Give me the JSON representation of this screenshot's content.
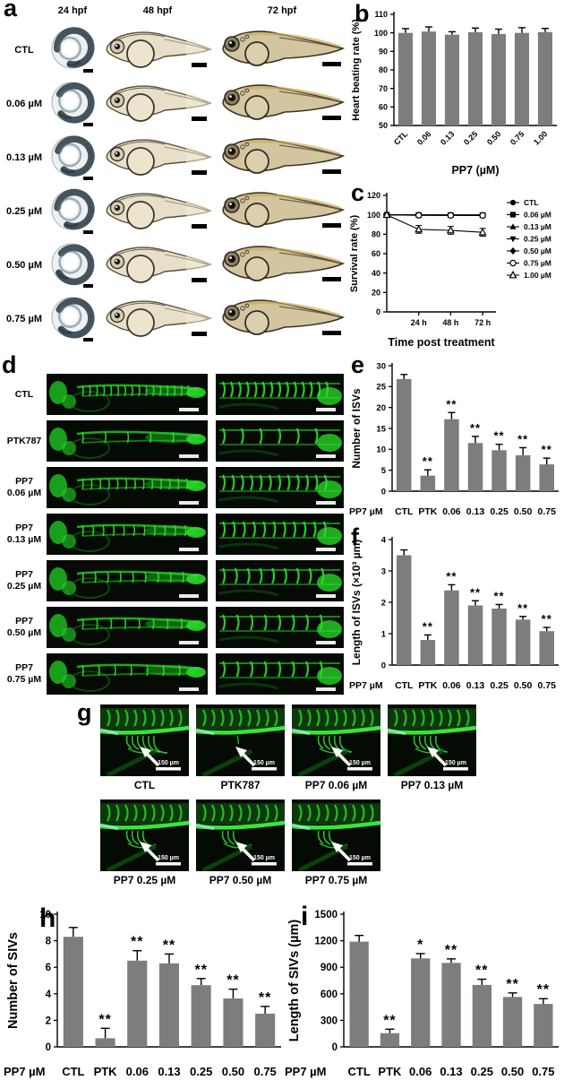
{
  "colors": {
    "bar": "#7d7d7d",
    "axis": "#000000",
    "green": "#2ae02a",
    "black_bg": "#050a05",
    "white": "#ffffff"
  },
  "panels": {
    "a": {
      "letter": "a",
      "col_headers": [
        "24 hpf",
        "48 hpf",
        "72 hpf"
      ],
      "row_labels": [
        "CTL",
        "0.06 µM",
        "0.13 µM",
        "0.25 µM",
        "0.50 µM",
        "0.75 µM"
      ]
    },
    "b": {
      "letter": "b"
    },
    "c": {
      "letter": "c"
    },
    "d": {
      "letter": "d",
      "row_labels": [
        [
          "CTL"
        ],
        [
          "PTK787"
        ],
        [
          "PP7",
          "0.06 µM"
        ],
        [
          "PP7",
          "0.13 µM"
        ],
        [
          "PP7",
          "0.25 µM"
        ],
        [
          "PP7",
          "0.50 µM"
        ],
        [
          "PP7",
          "0.75 µM"
        ]
      ]
    },
    "e": {
      "letter": "e"
    },
    "f": {
      "letter": "f"
    },
    "g": {
      "letter": "g",
      "row1_labels": [
        "CTL",
        "PTK787",
        "PP7 0.06 µM",
        "PP7 0.13 µM"
      ],
      "row2_labels": [
        "PP7 0.25 µM",
        "PP7 0.50 µM",
        "PP7 0.75 µM"
      ],
      "scale_label": "150 µm"
    },
    "h": {
      "letter": "h"
    },
    "i": {
      "letter": "i"
    }
  },
  "chart_data": [
    {
      "id": "b",
      "type": "bar",
      "title": "",
      "ylabel": "Heart beating rate (%)",
      "xlabel": "PP7 (µM)",
      "categories": [
        "CTL",
        "0.06",
        "0.13",
        "0.25",
        "0.50",
        "0.75",
        "1.00"
      ],
      "values": [
        100,
        100.7,
        99,
        100.3,
        99.4,
        100,
        100.4
      ],
      "errors": [
        2.3,
        2.5,
        1.6,
        2.3,
        2.6,
        2.8,
        2.0
      ],
      "sig": [
        "",
        "",
        "",
        "",
        "",
        "",
        ""
      ],
      "ylim": [
        50,
        110
      ],
      "yticks": [
        50,
        60,
        70,
        80,
        90,
        100,
        110
      ],
      "rotate_xticks": 45,
      "grid": false
    },
    {
      "id": "c",
      "type": "line",
      "title": "",
      "ylabel": "Survival rate (%)",
      "xlabel": "Time post treatment",
      "x": [
        0,
        24,
        48,
        72
      ],
      "xtickvals": [
        24,
        48,
        72
      ],
      "xticklabels": [
        "24 h",
        "48 h",
        "72 h"
      ],
      "ylim": [
        0,
        120
      ],
      "yticks": [
        0,
        20,
        40,
        60,
        80,
        100,
        120
      ],
      "xlim": [
        0,
        82
      ],
      "legend_position": "right",
      "grid": false,
      "series": [
        {
          "name": "CTL",
          "marker": "circle",
          "values": [
            100,
            100,
            100,
            100
          ],
          "errors": [
            0,
            1.5,
            1.5,
            1.5
          ]
        },
        {
          "name": "0.06 µM",
          "marker": "square",
          "values": [
            100,
            99.8,
            99.7,
            99.6
          ]
        },
        {
          "name": "0.13 µM",
          "marker": "triangle",
          "values": [
            100,
            99.9,
            99.8,
            99.7
          ]
        },
        {
          "name": "0.25 µM",
          "marker": "triangle-down",
          "values": [
            100,
            99.7,
            99.6,
            99.5
          ]
        },
        {
          "name": "0.50 µM",
          "marker": "diamond",
          "values": [
            100,
            99.6,
            99.5,
            99.4
          ]
        },
        {
          "name": "0.75 µM",
          "marker": "circle-open",
          "values": [
            100,
            99.5,
            99.4,
            99.3
          ]
        },
        {
          "name": "1.00 µM",
          "marker": "triangle-open",
          "values": [
            100,
            85,
            84,
            82
          ],
          "errors": [
            0,
            4,
            4,
            4
          ]
        }
      ]
    },
    {
      "id": "e",
      "type": "bar",
      "title": "",
      "ylabel": "Number of ISVs",
      "xlabel": "",
      "x_prefix": "PP7 µM",
      "categories": [
        "CTL",
        "PTK",
        "0.06",
        "0.13",
        "0.25",
        "0.50",
        "0.75"
      ],
      "values": [
        26.8,
        3.7,
        17.2,
        11.5,
        9.8,
        8.6,
        6.4
      ],
      "errors": [
        1.1,
        1.4,
        1.6,
        1.6,
        1.4,
        1.8,
        1.5
      ],
      "sig": [
        "",
        "**",
        "**",
        "**",
        "**",
        "**",
        "**"
      ],
      "ylim": [
        0,
        30
      ],
      "yticks": [
        0,
        5,
        10,
        15,
        20,
        25,
        30
      ],
      "grid": false
    },
    {
      "id": "f",
      "type": "bar",
      "title": "",
      "ylabel": "Length of ISVs (×10³ µm)",
      "xlabel": "",
      "x_prefix": "PP7 µM",
      "categories": [
        "CTL",
        "PTK",
        "0.06",
        "0.13",
        "0.25",
        "0.50",
        "0.75"
      ],
      "values": [
        3.5,
        0.8,
        2.38,
        1.9,
        1.8,
        1.45,
        1.08
      ],
      "errors": [
        0.17,
        0.16,
        0.18,
        0.15,
        0.13,
        0.1,
        0.12
      ],
      "sig": [
        "",
        "**",
        "**",
        "**",
        "**",
        "**",
        "**"
      ],
      "ylim": [
        0,
        4
      ],
      "yticks": [
        0,
        1,
        2,
        3,
        4
      ],
      "grid": false
    },
    {
      "id": "h",
      "type": "bar",
      "title": "",
      "ylabel": "Number of SIVs",
      "xlabel": "",
      "x_prefix": "PP7 µM",
      "categories": [
        "CTL",
        "PTK",
        "0.06",
        "0.13",
        "0.25",
        "0.50",
        "0.75"
      ],
      "values": [
        8.3,
        0.65,
        6.5,
        6.3,
        4.65,
        3.65,
        2.5
      ],
      "errors": [
        0.7,
        0.75,
        0.75,
        0.7,
        0.5,
        0.7,
        0.55
      ],
      "sig": [
        "",
        "**",
        "**",
        "**",
        "**",
        "**",
        "**"
      ],
      "ylim": [
        0,
        10
      ],
      "yticks": [
        0,
        2,
        4,
        6,
        8,
        10
      ],
      "grid": false
    },
    {
      "id": "i",
      "type": "bar",
      "title": "",
      "ylabel": "Length of SIVs (µm)",
      "xlabel": "",
      "x_prefix": "PP7 µM",
      "categories": [
        "CTL",
        "PTK",
        "0.06",
        "0.13",
        "0.25",
        "0.50",
        "0.75"
      ],
      "values": [
        1190,
        155,
        1000,
        950,
        700,
        565,
        485
      ],
      "errors": [
        70,
        45,
        55,
        45,
        65,
        45,
        60
      ],
      "sig": [
        "",
        "**",
        "*",
        "**",
        "**",
        "**",
        "**"
      ],
      "ylim": [
        0,
        1500
      ],
      "yticks": [
        0,
        300,
        600,
        900,
        1200,
        1500
      ],
      "grid": false
    }
  ]
}
